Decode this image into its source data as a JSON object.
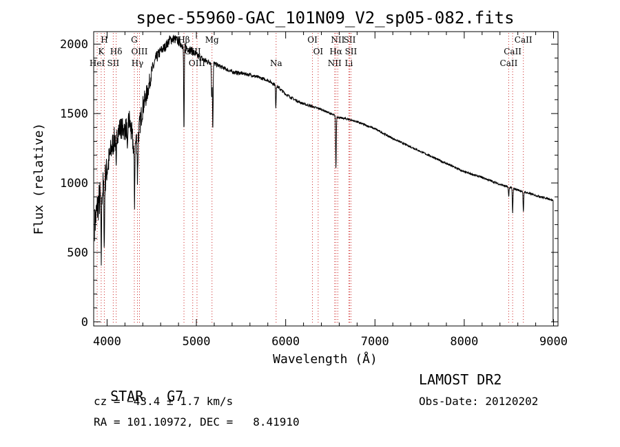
{
  "chart_data": {
    "type": "line",
    "title": "spec-55960-GAC_101N09_V2_sp05-082.fits",
    "xlabel": "Wavelength (Å)",
    "ylabel": "Flux (relative)",
    "xlim": [
      3850,
      9050
    ],
    "ylim": [
      -30,
      2090
    ],
    "xticks": [
      4000,
      5000,
      6000,
      7000,
      8000,
      9000
    ],
    "yticks": [
      0,
      500,
      1000,
      1500,
      2000
    ],
    "grid": false,
    "line_color": "#000000",
    "marker_color": "#cc2222",
    "continuum": {
      "x": [
        3860,
        3900,
        3950,
        4000,
        4050,
        4100,
        4150,
        4200,
        4250,
        4300,
        4350,
        4400,
        4450,
        4500,
        4550,
        4600,
        4650,
        4700,
        4750,
        4800,
        4850,
        4900,
        4950,
        5000,
        5050,
        5100,
        5150,
        5200,
        5300,
        5400,
        5500,
        5600,
        5700,
        5800,
        5900,
        6000,
        6100,
        6200,
        6300,
        6400,
        6500,
        6600,
        6700,
        6800,
        7000,
        7200,
        7400,
        7600,
        7800,
        8000,
        8200,
        8400,
        8600,
        8800,
        8950,
        8990
      ],
      "y": [
        700,
        850,
        950,
        1100,
        1250,
        1350,
        1400,
        1380,
        1450,
        1250,
        1350,
        1550,
        1650,
        1800,
        1900,
        1950,
        1980,
        2030,
        2040,
        2020,
        1990,
        1970,
        1950,
        1920,
        1900,
        1880,
        1870,
        1860,
        1830,
        1800,
        1790,
        1780,
        1760,
        1740,
        1700,
        1640,
        1600,
        1570,
        1550,
        1530,
        1500,
        1470,
        1460,
        1440,
        1390,
        1320,
        1260,
        1200,
        1140,
        1080,
        1040,
        990,
        950,
        910,
        885,
        875
      ],
      "noise": [
        120,
        140,
        130,
        110,
        100,
        90,
        80,
        80,
        90,
        95,
        90,
        80,
        70,
        55,
        45,
        40,
        35,
        35,
        35,
        35,
        30,
        30,
        30,
        28,
        25,
        22,
        20,
        18,
        15,
        14,
        13,
        12,
        12,
        12,
        12,
        11,
        10,
        9,
        8,
        8,
        8,
        7,
        7,
        7,
        7,
        7,
        7,
        7,
        7,
        7,
        7,
        7,
        7,
        7,
        7,
        7
      ]
    },
    "absorption_features": [
      {
        "x": 3934,
        "depth": 500
      },
      {
        "x": 3969,
        "depth": 450
      },
      {
        "x": 4102,
        "depth": 300
      },
      {
        "x": 4227,
        "depth": 250
      },
      {
        "x": 4307,
        "depth": 400
      },
      {
        "x": 4341,
        "depth": 300
      },
      {
        "x": 4861,
        "depth": 620
      },
      {
        "x": 5172,
        "depth": 260
      },
      {
        "x": 5184,
        "depth": 480
      },
      {
        "x": 5890,
        "depth": 160
      },
      {
        "x": 6563,
        "depth": 380
      },
      {
        "x": 8498,
        "depth": 70
      },
      {
        "x": 8542,
        "depth": 180
      },
      {
        "x": 8662,
        "depth": 150
      }
    ],
    "end_dropoff": {
      "x": 8995,
      "y": 0
    },
    "line_markers": [
      {
        "label": "H",
        "x": 3969,
        "row": 0
      },
      {
        "label": "K",
        "x": 3934,
        "row": 1
      },
      {
        "label": "HeI",
        "x": 3889,
        "row": 2
      },
      {
        "label": "SII",
        "x": 4069,
        "row": 2
      },
      {
        "label": "Hδ",
        "x": 4102,
        "row": 1
      },
      {
        "label": "G",
        "x": 4305,
        "row": 0
      },
      {
        "label": "OIII",
        "x": 4363,
        "row": 1
      },
      {
        "label": "Hγ",
        "x": 4340,
        "row": 2
      },
      {
        "label": "Hβ",
        "x": 4861,
        "row": 0
      },
      {
        "label": "OIII",
        "x": 4959,
        "row": 1
      },
      {
        "label": "OIII",
        "x": 5007,
        "row": 2
      },
      {
        "label": "Mg",
        "x": 5175,
        "row": 0
      },
      {
        "label": "Na",
        "x": 5893,
        "row": 2
      },
      {
        "label": "OI",
        "x": 6300,
        "row": 0
      },
      {
        "label": "OI",
        "x": 6364,
        "row": 1
      },
      {
        "label": "NII",
        "x": 6548,
        "row": 2
      },
      {
        "label": "NII",
        "x": 6584,
        "row": 0
      },
      {
        "label": "Hα",
        "x": 6563,
        "row": 1
      },
      {
        "label": "SII",
        "x": 6716,
        "row": 0
      },
      {
        "label": "SII",
        "x": 6731,
        "row": 1
      },
      {
        "label": "Li",
        "x": 6708,
        "row": 2
      },
      {
        "label": "CaII",
        "x": 8662,
        "row": 0
      },
      {
        "label": "CaII",
        "x": 8542,
        "row": 1
      },
      {
        "label": "CaII",
        "x": 8498,
        "row": 2
      }
    ]
  },
  "info": {
    "class": "STAR",
    "subclass": "G7",
    "survey": "LAMOST DR2",
    "redshift": "cz = −43.4 ± 1.7 km/s",
    "obs_date": "Obs-Date: 20120202",
    "coords": "RA = 101.10972, DEC =   8.41910"
  }
}
